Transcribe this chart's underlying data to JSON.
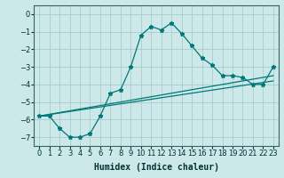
{
  "xlabel": "Humidex (Indice chaleur)",
  "background_color": "#cce8e8",
  "grid_color": "#aacccc",
  "line_color": "#007878",
  "xlim": [
    -0.5,
    23.5
  ],
  "ylim": [
    -7.5,
    0.5
  ],
  "xticks": [
    0,
    1,
    2,
    3,
    4,
    5,
    6,
    7,
    8,
    9,
    10,
    11,
    12,
    13,
    14,
    15,
    16,
    17,
    18,
    19,
    20,
    21,
    22,
    23
  ],
  "yticks": [
    0,
    -1,
    -2,
    -3,
    -4,
    -5,
    -6,
    -7
  ],
  "series1_x": [
    0,
    1,
    2,
    3,
    4,
    5,
    6,
    7,
    8,
    9,
    10,
    11,
    12,
    13,
    14,
    15,
    16,
    17,
    18,
    19,
    20,
    21,
    22,
    23
  ],
  "series1_y": [
    -5.8,
    -5.8,
    -6.5,
    -7.0,
    -7.0,
    -6.8,
    -5.8,
    -4.5,
    -4.3,
    -3.0,
    -1.2,
    -0.7,
    -0.9,
    -0.5,
    -1.1,
    -1.8,
    -2.5,
    -2.9,
    -3.5,
    -3.5,
    -3.6,
    -4.0,
    -4.0,
    -3.0
  ],
  "series2_x": [
    0,
    23
  ],
  "series2_y": [
    -5.8,
    -3.5
  ],
  "series3_x": [
    0,
    23
  ],
  "series3_y": [
    -5.8,
    -3.8
  ],
  "xlabel_fontsize": 7,
  "tick_fontsize": 6
}
